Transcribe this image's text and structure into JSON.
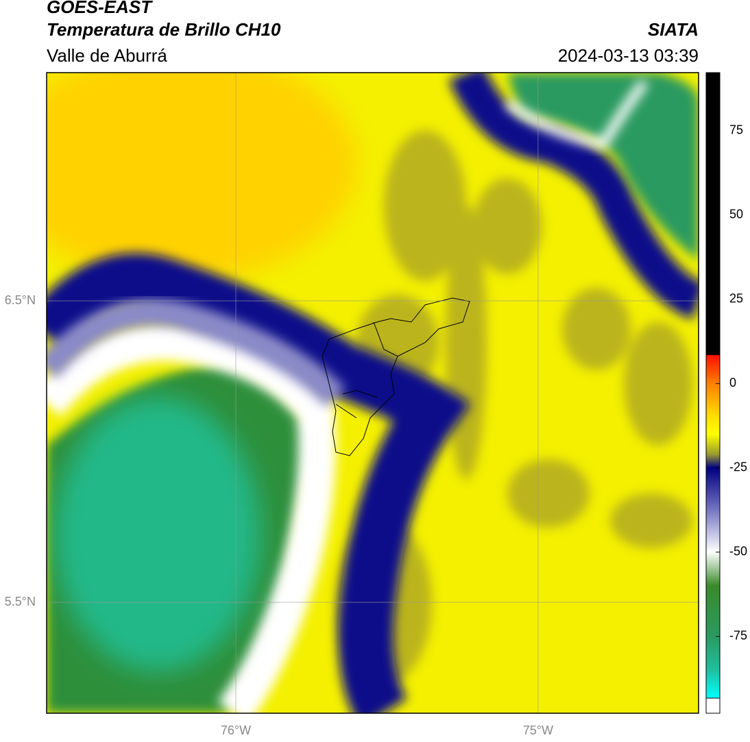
{
  "header": {
    "title": "GOES-EAST",
    "subtitle": "Temperatura de Brillo CH10",
    "region": "Valle de Aburrá",
    "source": "SIATA",
    "datetime": "2024-03-13 03:39"
  },
  "map": {
    "xlim": [
      -76.626,
      -74.469
    ],
    "ylim": [
      5.132,
      7.257
    ],
    "xticks": [
      {
        "value": -76,
        "label": "76°W"
      },
      {
        "value": -75,
        "label": "75°W"
      }
    ],
    "yticks": [
      {
        "value": 6.5,
        "label": "6.5°N"
      },
      {
        "value": 5.5,
        "label": "5.5°N"
      }
    ],
    "grid": true
  },
  "colorbar": {
    "vlim": [
      -93.3,
      92.2
    ],
    "ticks": [
      75,
      50,
      25,
      0,
      -25,
      -50,
      -75
    ],
    "stops": [
      {
        "value": 92.2,
        "color": "#000000"
      },
      {
        "value": 8.5,
        "color": "#000000"
      },
      {
        "value": 8.4,
        "color": "#ff1000"
      },
      {
        "value": 0,
        "color": "#ff8000"
      },
      {
        "value": -10,
        "color": "#ffe000"
      },
      {
        "value": -15,
        "color": "#ffff00"
      },
      {
        "value": -21,
        "color": "#9a9a30"
      },
      {
        "value": -25,
        "color": "#000080"
      },
      {
        "value": -37,
        "color": "#7070c0"
      },
      {
        "value": -50,
        "color": "#ffffff"
      },
      {
        "value": -60,
        "color": "#3a8a2a"
      },
      {
        "value": -75,
        "color": "#2a9a60"
      },
      {
        "value": -85,
        "color": "#20c0a0"
      },
      {
        "value": -93.3,
        "color": "#00ffff"
      }
    ]
  }
}
